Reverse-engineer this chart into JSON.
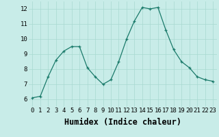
{
  "x": [
    0,
    1,
    2,
    3,
    4,
    5,
    6,
    7,
    8,
    9,
    10,
    11,
    12,
    13,
    14,
    15,
    16,
    17,
    18,
    19,
    20,
    21,
    22,
    23
  ],
  "y": [
    6.1,
    6.2,
    7.5,
    8.6,
    9.2,
    9.5,
    9.5,
    8.1,
    7.5,
    7.0,
    7.3,
    8.5,
    10.0,
    11.2,
    12.1,
    12.0,
    12.1,
    10.6,
    9.3,
    8.5,
    8.1,
    7.5,
    7.3,
    7.2
  ],
  "xlabel": "Humidex (Indice chaleur)",
  "ylim": [
    5.5,
    12.5
  ],
  "xlim": [
    -0.5,
    23.5
  ],
  "yticks": [
    6,
    7,
    8,
    9,
    10,
    11,
    12
  ],
  "xticks": [
    0,
    1,
    2,
    3,
    4,
    5,
    6,
    7,
    8,
    9,
    10,
    11,
    12,
    13,
    14,
    15,
    16,
    17,
    18,
    19,
    20,
    21,
    22,
    23
  ],
  "line_color": "#1a7a6a",
  "marker_color": "#1a7a6a",
  "bg_color": "#c8ece8",
  "grid_color": "#a8d8d0",
  "tick_label_fontsize": 6.5,
  "xlabel_fontsize": 8.5
}
